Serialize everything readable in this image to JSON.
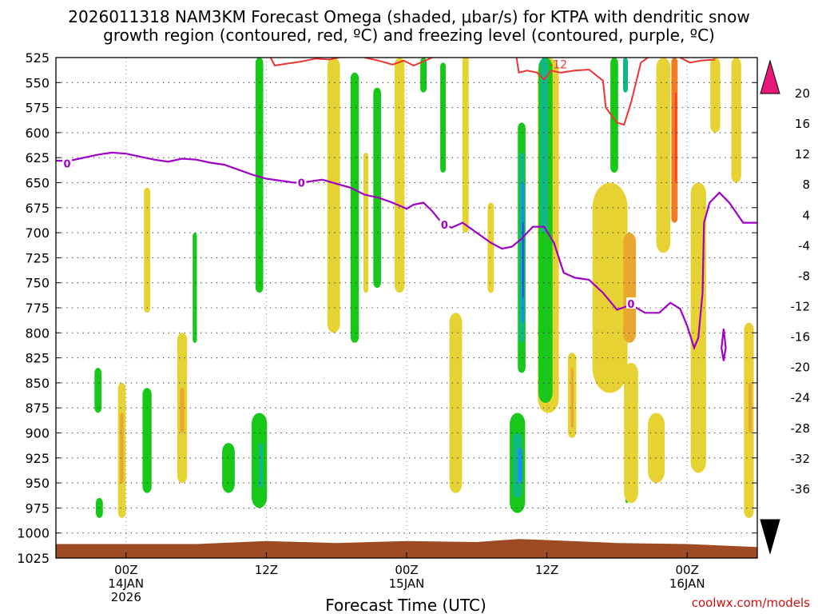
{
  "chart_data": {
    "type": "heatmap",
    "title_line1": "2026011318 NAM3KM Forecast Omega (shaded, μbar/s) for KTPA with dendritic snow",
    "title_line2": "growth region (contoured, red, ºC) and freezing level (contoured, purple, ºC)",
    "xlabel": "Forecast Time (UTC)",
    "credit": "coolwx.com/models",
    "x_range_hours": [
      -5,
      45
    ],
    "x_ticks": [
      {
        "hour": 0,
        "lines": [
          "00Z",
          "14JAN",
          "2026"
        ]
      },
      {
        "hour": 10,
        "lines": [
          "12Z"
        ]
      },
      {
        "hour": 20,
        "lines": [
          "00Z",
          "15JAN"
        ]
      },
      {
        "hour": 30,
        "lines": [
          "12Z"
        ]
      },
      {
        "hour": 40,
        "lines": [
          "00Z",
          "16JAN"
        ]
      }
    ],
    "y_range_mb": [
      1025,
      525
    ],
    "y_ticks": [
      "525",
      "550",
      "575",
      "600",
      "625",
      "650",
      "675",
      "700",
      "725",
      "750",
      "775",
      "800",
      "825",
      "850",
      "875",
      "900",
      "925",
      "950",
      "975",
      "1000",
      "1025"
    ],
    "colorbar": {
      "labels": [
        "20",
        "16",
        "12",
        "8",
        "4",
        "-4",
        "-8",
        "-12",
        "-16",
        "-20",
        "-24",
        "-28",
        "-32",
        "-36"
      ],
      "colors": [
        "#ff0000",
        "#ff4030",
        "#f07d20",
        "#e8a830",
        "#e6d233",
        "#ffffff",
        "#18c818",
        "#10b888",
        "#10b8d8",
        "#1890f0",
        "#2040e8",
        "#8010d0",
        "#a000c0",
        "#a0a0a0"
      ],
      "top_arrow_color": "#e8187a",
      "bottom_arrow_color": "#000000"
    },
    "omega_cells": [
      {
        "t": -2.0,
        "p0": 835,
        "p1": 880,
        "w": 0.5,
        "c": "#18c818"
      },
      {
        "t": -1.9,
        "p0": 965,
        "p1": 985,
        "w": 0.5,
        "c": "#18c818"
      },
      {
        "t": -0.3,
        "p0": 850,
        "p1": 985,
        "w": 0.55,
        "c": "#e6d233"
      },
      {
        "t": -0.3,
        "p0": 880,
        "p1": 950,
        "w": 0.25,
        "c": "#e8a830"
      },
      {
        "t": 1.5,
        "p0": 855,
        "p1": 960,
        "w": 0.65,
        "c": "#18c818"
      },
      {
        "t": 1.5,
        "p0": 655,
        "p1": 780,
        "w": 0.45,
        "c": "#e6d233"
      },
      {
        "t": 4.0,
        "p0": 800,
        "p1": 950,
        "w": 0.7,
        "c": "#e6d233"
      },
      {
        "t": 4.0,
        "p0": 855,
        "p1": 900,
        "w": 0.3,
        "c": "#e8a830"
      },
      {
        "t": 4.9,
        "p0": 700,
        "p1": 810,
        "w": 0.3,
        "c": "#18c818"
      },
      {
        "t": 7.3,
        "p0": 910,
        "p1": 960,
        "w": 0.9,
        "c": "#18c818"
      },
      {
        "t": 9.5,
        "p0": 880,
        "p1": 975,
        "w": 1.1,
        "c": "#18c818"
      },
      {
        "t": 9.6,
        "p0": 910,
        "p1": 955,
        "w": 0.3,
        "c": "#10b888"
      },
      {
        "t": 9.5,
        "p0": 525,
        "p1": 760,
        "w": 0.55,
        "c": "#18c818"
      },
      {
        "t": 14.8,
        "p0": 525,
        "p1": 800,
        "w": 0.9,
        "c": "#e6d233"
      },
      {
        "t": 16.3,
        "p0": 540,
        "p1": 810,
        "w": 0.6,
        "c": "#18c818"
      },
      {
        "t": 17.1,
        "p0": 620,
        "p1": 760,
        "w": 0.35,
        "c": "#e6d233"
      },
      {
        "t": 17.9,
        "p0": 555,
        "p1": 755,
        "w": 0.55,
        "c": "#18c818"
      },
      {
        "t": 19.5,
        "p0": 525,
        "p1": 760,
        "w": 0.7,
        "c": "#e6d233"
      },
      {
        "t": 21.2,
        "p0": 525,
        "p1": 560,
        "w": 0.45,
        "c": "#18c818"
      },
      {
        "t": 22.6,
        "p0": 530,
        "p1": 640,
        "w": 0.4,
        "c": "#18c818"
      },
      {
        "t": 23.5,
        "p0": 780,
        "p1": 960,
        "w": 0.9,
        "c": "#e6d233"
      },
      {
        "t": 24.2,
        "p0": 520,
        "p1": 700,
        "w": 0.45,
        "c": "#e6d233"
      },
      {
        "t": 26.0,
        "p0": 670,
        "p1": 760,
        "w": 0.45,
        "c": "#e6d233"
      },
      {
        "t": 27.9,
        "p0": 880,
        "p1": 980,
        "w": 1.1,
        "c": "#18c818"
      },
      {
        "t": 27.9,
        "p0": 900,
        "p1": 965,
        "w": 0.6,
        "c": "#10b888"
      },
      {
        "t": 28.1,
        "p0": 915,
        "p1": 950,
        "w": 0.3,
        "c": "#1890f0"
      },
      {
        "t": 28.2,
        "p0": 590,
        "p1": 840,
        "w": 0.55,
        "c": "#18c818"
      },
      {
        "t": 28.2,
        "p0": 620,
        "p1": 810,
        "w": 0.35,
        "c": "#10b888"
      },
      {
        "t": 28.3,
        "p0": 650,
        "p1": 790,
        "w": 0.2,
        "c": "#1890f0"
      },
      {
        "t": 28.3,
        "p0": 690,
        "p1": 765,
        "w": 0.08,
        "c": "#2040e8"
      },
      {
        "t": 30.1,
        "p0": 525,
        "p1": 880,
        "w": 1.5,
        "c": "#e6d233"
      },
      {
        "t": 29.9,
        "p0": 525,
        "p1": 870,
        "w": 1.0,
        "c": "#18c818"
      },
      {
        "t": 29.8,
        "p0": 525,
        "p1": 700,
        "w": 0.55,
        "c": "#10b888"
      },
      {
        "t": 31.8,
        "p0": 820,
        "p1": 905,
        "w": 0.6,
        "c": "#e6d233"
      },
      {
        "t": 31.8,
        "p0": 835,
        "p1": 895,
        "w": 0.2,
        "c": "#e8a830"
      },
      {
        "t": 34.5,
        "p0": 650,
        "p1": 860,
        "w": 2.5,
        "c": "#e6d233"
      },
      {
        "t": 35.9,
        "p0": 700,
        "p1": 810,
        "w": 0.9,
        "c": "#e8a830"
      },
      {
        "t": 34.8,
        "p0": 525,
        "p1": 640,
        "w": 0.55,
        "c": "#18c818"
      },
      {
        "t": 35.6,
        "p0": 525,
        "p1": 560,
        "w": 0.35,
        "c": "#10b888"
      },
      {
        "t": 35.7,
        "p0": 930,
        "p1": 970,
        "w": 0.2,
        "c": "#18c818"
      },
      {
        "t": 36.0,
        "p0": 830,
        "p1": 970,
        "w": 1.0,
        "c": "#e6d233"
      },
      {
        "t": 37.8,
        "p0": 880,
        "p1": 950,
        "w": 1.2,
        "c": "#e6d233"
      },
      {
        "t": 38.3,
        "p0": 525,
        "p1": 720,
        "w": 1.0,
        "c": "#e6d233"
      },
      {
        "t": 39.1,
        "p0": 525,
        "p1": 690,
        "w": 0.45,
        "c": "#f07d20"
      },
      {
        "t": 39.2,
        "p0": 560,
        "p1": 650,
        "w": 0.15,
        "c": "#ff4030"
      },
      {
        "t": 40.8,
        "p0": 650,
        "p1": 940,
        "w": 1.1,
        "c": "#e6d233"
      },
      {
        "t": 42.0,
        "p0": 525,
        "p1": 600,
        "w": 0.7,
        "c": "#e6d233"
      },
      {
        "t": 43.5,
        "p0": 525,
        "p1": 650,
        "w": 0.7,
        "c": "#e6d233"
      },
      {
        "t": 44.4,
        "p0": 790,
        "p1": 985,
        "w": 0.7,
        "c": "#e6d233"
      },
      {
        "t": 44.5,
        "p0": 850,
        "p1": 900,
        "w": 0.25,
        "c": "#e8a830"
      }
    ],
    "freezing_level": [
      {
        "t": -5,
        "p": 628
      },
      {
        "t": -4,
        "p": 628
      },
      {
        "t": -2,
        "p": 622
      },
      {
        "t": -1,
        "p": 620
      },
      {
        "t": 0,
        "p": 621
      },
      {
        "t": 1,
        "p": 624
      },
      {
        "t": 2,
        "p": 627
      },
      {
        "t": 3,
        "p": 629
      },
      {
        "t": 4,
        "p": 626
      },
      {
        "t": 5,
        "p": 627
      },
      {
        "t": 6,
        "p": 630
      },
      {
        "t": 7,
        "p": 632
      },
      {
        "t": 8,
        "p": 637
      },
      {
        "t": 9,
        "p": 642
      },
      {
        "t": 10,
        "p": 646
      },
      {
        "t": 11,
        "p": 648
      },
      {
        "t": 12,
        "p": 650
      },
      {
        "t": 13,
        "p": 649
      },
      {
        "t": 14,
        "p": 647
      },
      {
        "t": 15,
        "p": 651
      },
      {
        "t": 16,
        "p": 655
      },
      {
        "t": 17,
        "p": 662
      },
      {
        "t": 18,
        "p": 665
      },
      {
        "t": 19,
        "p": 670
      },
      {
        "t": 20,
        "p": 676
      },
      {
        "t": 20.5,
        "p": 672
      },
      {
        "t": 21.2,
        "p": 670
      },
      {
        "t": 21.8,
        "p": 678
      },
      {
        "t": 22.5,
        "p": 690
      },
      {
        "t": 23.2,
        "p": 695
      },
      {
        "t": 24,
        "p": 690
      },
      {
        "t": 25,
        "p": 700
      },
      {
        "t": 26,
        "p": 710
      },
      {
        "t": 26.8,
        "p": 716
      },
      {
        "t": 27.5,
        "p": 714
      },
      {
        "t": 28.2,
        "p": 706
      },
      {
        "t": 29,
        "p": 694
      },
      {
        "t": 29.8,
        "p": 694
      },
      {
        "t": 30.5,
        "p": 710
      },
      {
        "t": 31.2,
        "p": 740
      },
      {
        "t": 32,
        "p": 745
      },
      {
        "t": 33,
        "p": 747
      },
      {
        "t": 34,
        "p": 760
      },
      {
        "t": 35,
        "p": 777
      },
      {
        "t": 36,
        "p": 772
      },
      {
        "t": 37,
        "p": 780
      },
      {
        "t": 38,
        "p": 780
      },
      {
        "t": 38.8,
        "p": 770
      },
      {
        "t": 39.5,
        "p": 776
      },
      {
        "t": 40,
        "p": 793
      },
      {
        "t": 40.5,
        "p": 815
      },
      {
        "t": 40.8,
        "p": 805
      },
      {
        "t": 41.1,
        "p": 760
      },
      {
        "t": 41.2,
        "p": 690
      },
      {
        "t": 41.6,
        "p": 670
      },
      {
        "t": 42.3,
        "p": 660
      },
      {
        "t": 43.0,
        "p": 670
      },
      {
        "t": 44.0,
        "p": 690
      },
      {
        "t": 45,
        "p": 690
      }
    ],
    "freezing_small_loop": [
      {
        "t": 42.6,
        "p": 796
      },
      {
        "t": 42.75,
        "p": 815
      },
      {
        "t": 42.6,
        "p": 828
      },
      {
        "t": 42.45,
        "p": 815
      },
      {
        "t": 42.6,
        "p": 796
      }
    ],
    "freezing_labels": [
      {
        "t": -4.2,
        "p": 631,
        "text": "0"
      },
      {
        "t": 12.5,
        "p": 650,
        "text": "0"
      },
      {
        "t": 22.7,
        "p": 692,
        "text": "0"
      },
      {
        "t": 36.0,
        "p": 771,
        "text": "0"
      }
    ],
    "dgz_contours": [
      [
        {
          "t": 10.3,
          "p": 525
        },
        {
          "t": 10.6,
          "p": 533
        },
        {
          "t": 11.5,
          "p": 531
        },
        {
          "t": 12.5,
          "p": 529
        },
        {
          "t": 13.5,
          "p": 526
        },
        {
          "t": 14.5,
          "p": 527
        },
        {
          "t": 15.5,
          "p": 524
        }
      ],
      [
        {
          "t": 17.0,
          "p": 525
        },
        {
          "t": 18.0,
          "p": 528
        },
        {
          "t": 19.0,
          "p": 532
        },
        {
          "t": 19.8,
          "p": 528
        },
        {
          "t": 20.5,
          "p": 533
        },
        {
          "t": 21.5,
          "p": 527
        },
        {
          "t": 22.0,
          "p": 524
        }
      ],
      [
        {
          "t": 27.8,
          "p": 522
        },
        {
          "t": 28.0,
          "p": 540
        },
        {
          "t": 28.6,
          "p": 538
        },
        {
          "t": 29.3,
          "p": 540
        },
        {
          "t": 29.8,
          "p": 547
        },
        {
          "t": 30.3,
          "p": 538
        },
        {
          "t": 31.0,
          "p": 540
        },
        {
          "t": 32.0,
          "p": 538
        },
        {
          "t": 33.0,
          "p": 537
        },
        {
          "t": 34.0,
          "p": 548
        },
        {
          "t": 34.2,
          "p": 575
        },
        {
          "t": 35.0,
          "p": 590
        },
        {
          "t": 35.5,
          "p": 592
        },
        {
          "t": 36.0,
          "p": 570
        },
        {
          "t": 36.7,
          "p": 530
        },
        {
          "t": 37.3,
          "p": 524
        }
      ],
      [
        {
          "t": 39.5,
          "p": 525
        },
        {
          "t": 40.2,
          "p": 530
        },
        {
          "t": 41.0,
          "p": 528
        },
        {
          "t": 42.0,
          "p": 527
        }
      ]
    ],
    "dgz_label": {
      "t": 30.8,
      "p": 531,
      "text": "-12"
    },
    "terrain": [
      {
        "t": -5,
        "p": 1011
      },
      {
        "t": 0,
        "p": 1011
      },
      {
        "t": 5,
        "p": 1011
      },
      {
        "t": 10,
        "p": 1008
      },
      {
        "t": 15,
        "p": 1010
      },
      {
        "t": 20,
        "p": 1008
      },
      {
        "t": 25,
        "p": 1009
      },
      {
        "t": 28,
        "p": 1006
      },
      {
        "t": 30,
        "p": 1007
      },
      {
        "t": 35,
        "p": 1010
      },
      {
        "t": 40,
        "p": 1011
      },
      {
        "t": 45,
        "p": 1014
      }
    ],
    "terrain_color": "#9e4a22"
  }
}
